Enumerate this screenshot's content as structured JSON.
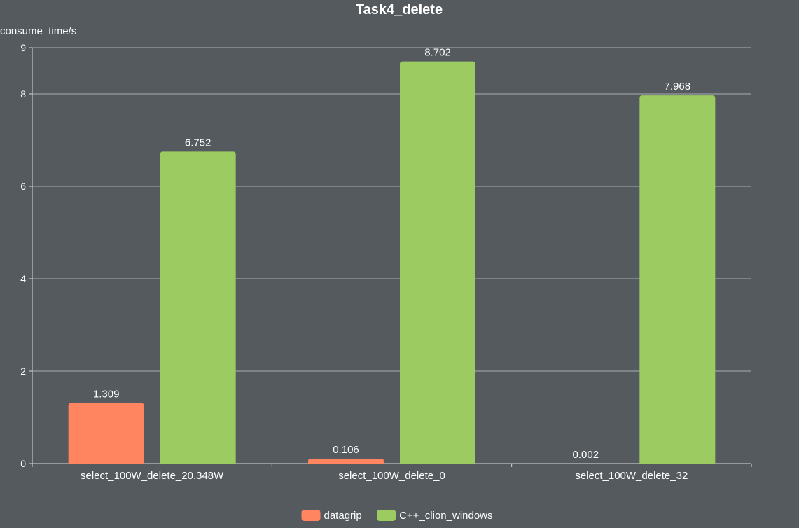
{
  "chart_data": {
    "type": "bar",
    "title": "Task4_delete",
    "xlabel": "",
    "ylabel": "consume_time/s",
    "ylim": [
      0,
      9
    ],
    "yticks": [
      0,
      2,
      4,
      6,
      8,
      9
    ],
    "grid": true,
    "legend_position": "bottom-center",
    "categories": [
      "select_100W_delete_20.348W",
      "select_100W_delete_0",
      "select_100W_delete_32"
    ],
    "series": [
      {
        "name": "datagrip",
        "color": "#ff8460",
        "values": [
          1.309,
          0.106,
          0.002
        ],
        "labels": [
          "1.309",
          "0.106",
          "0.002"
        ]
      },
      {
        "name": "C++_clion_windows",
        "color": "#9ccb61",
        "values": [
          6.752,
          8.702,
          7.968
        ],
        "labels": [
          "6.752",
          "8.702",
          "7.968"
        ]
      }
    ]
  }
}
